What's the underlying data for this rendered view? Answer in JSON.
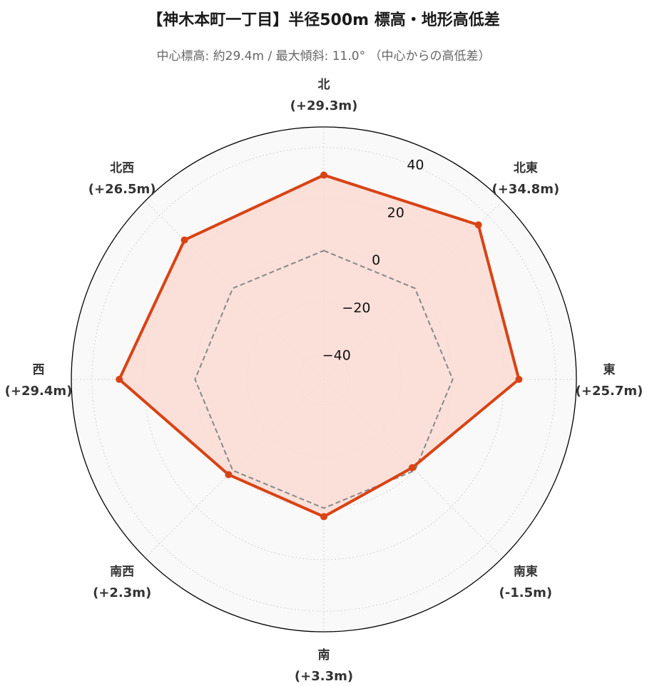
{
  "chart_data": {
    "type": "radar",
    "title": "【神木本町一丁目】半径500m 標高・地形高低差",
    "subtitle": "中心標高: 約29.4m / 最大傾斜: 11.0° （中心からの高低差）",
    "categories": [
      {
        "name": "北",
        "diff": "(+29.3m)"
      },
      {
        "name": "北東",
        "diff": "(+34.8m)"
      },
      {
        "name": "東",
        "diff": "(+25.7m)"
      },
      {
        "name": "南東",
        "diff": "(-1.5m)"
      },
      {
        "name": "南",
        "diff": "(+3.3m)"
      },
      {
        "name": "南西",
        "diff": "(+2.3m)"
      },
      {
        "name": "西",
        "diff": "(+29.4m)"
      },
      {
        "name": "北西",
        "diff": "(+26.5m)"
      }
    ],
    "series": [
      {
        "values": [
          29.3,
          34.8,
          25.7,
          -1.5,
          3.3,
          2.3,
          29.4,
          26.5
        ],
        "color": "#d84315",
        "fill": "#fcdcd3"
      },
      {
        "values": [
          0,
          0,
          0,
          0,
          0,
          0,
          0,
          0
        ],
        "color": "#888888",
        "style": "dashed"
      }
    ],
    "rlim": [
      -50,
      48
    ],
    "rticks": [
      -40,
      -20,
      0,
      20,
      40
    ],
    "rtick_labels": [
      "−40",
      "−20",
      "0",
      "20",
      "40"
    ],
    "grid": true
  }
}
